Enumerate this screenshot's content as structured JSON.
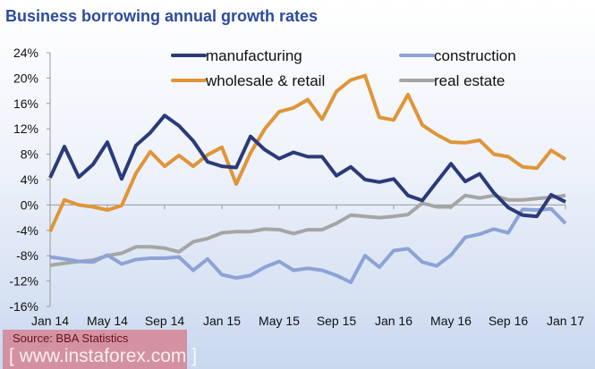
{
  "chart_data": {
    "type": "line",
    "title": "Business borrowing annual growth rates",
    "xlabel": "",
    "ylabel": "",
    "ylim": [
      -16,
      24
    ],
    "yticks": [
      "24%",
      "20%",
      "16%",
      "12%",
      "8%",
      "4%",
      "0%",
      "-4%",
      "-8%",
      "-12%",
      "-16%"
    ],
    "xtick_labels": [
      "Jan 14",
      "May 14",
      "Sep 14",
      "Jan 15",
      "May 15",
      "Sep 15",
      "Jan 16",
      "May 16",
      "Sep 16",
      "Jan 17"
    ],
    "x_range": [
      "Jan 14",
      "Jan 17"
    ],
    "x_frequency": "monthly",
    "grid": false,
    "legend_position": "top",
    "series": [
      {
        "name": "manufacturing",
        "color": "#2b3a78",
        "values": [
          4.3,
          9.2,
          4.4,
          6.4,
          9.9,
          4.1,
          9.4,
          11.4,
          14.1,
          12.5,
          10.1,
          6.8,
          6.1,
          5.9,
          10.8,
          8.7,
          7.3,
          8.3,
          7.6,
          7.6,
          4.6,
          6.0,
          4.0,
          3.6,
          4.1,
          1.5,
          0.7,
          3.6,
          6.5,
          3.7,
          4.9,
          1.9,
          -0.4,
          -1.6,
          -1.8,
          1.6,
          0.5
        ]
      },
      {
        "name": "construction",
        "color": "#8da2d6",
        "values": [
          -8.2,
          -8.5,
          -8.9,
          -9.0,
          -7.9,
          -9.3,
          -8.6,
          -8.4,
          -8.4,
          -8.2,
          -10.3,
          -8.5,
          -11.0,
          -11.5,
          -11.1,
          -9.8,
          -8.9,
          -10.3,
          -10.0,
          -10.3,
          -11.1,
          -12.2,
          -8.0,
          -9.8,
          -7.2,
          -6.9,
          -9.0,
          -9.6,
          -7.9,
          -5.1,
          -4.6,
          -3.8,
          -4.4,
          -0.7,
          -0.8,
          -0.6,
          -2.9
        ]
      },
      {
        "name": "wholesale & retail",
        "color": "#df9538",
        "values": [
          -4.2,
          0.8,
          0.0,
          -0.3,
          -0.8,
          -0.1,
          5.0,
          8.4,
          6.1,
          7.8,
          6.1,
          7.9,
          9.1,
          3.3,
          8.2,
          12.0,
          14.7,
          15.3,
          16.6,
          13.5,
          17.9,
          19.7,
          20.4,
          13.8,
          13.4,
          17.4,
          12.6,
          11.1,
          9.9,
          9.8,
          10.2,
          8.0,
          7.6,
          6.0,
          5.8,
          8.6,
          7.2
        ]
      },
      {
        "name": "real estate",
        "color": "#a5a5a5",
        "values": [
          -9.5,
          -9.2,
          -8.9,
          -8.7,
          -8.0,
          -7.6,
          -6.6,
          -6.6,
          -6.8,
          -7.4,
          -5.8,
          -5.3,
          -4.4,
          -4.2,
          -4.2,
          -3.8,
          -3.9,
          -4.5,
          -3.9,
          -3.9,
          -2.9,
          -1.6,
          -1.8,
          -2.0,
          -1.8,
          -1.5,
          0.3,
          -0.3,
          -0.3,
          1.5,
          1.1,
          1.5,
          0.8,
          0.8,
          1.0,
          1.2,
          1.5
        ]
      }
    ]
  },
  "source": "Source: BBA Statistics",
  "watermark": "[ www.instaforex.com ]"
}
